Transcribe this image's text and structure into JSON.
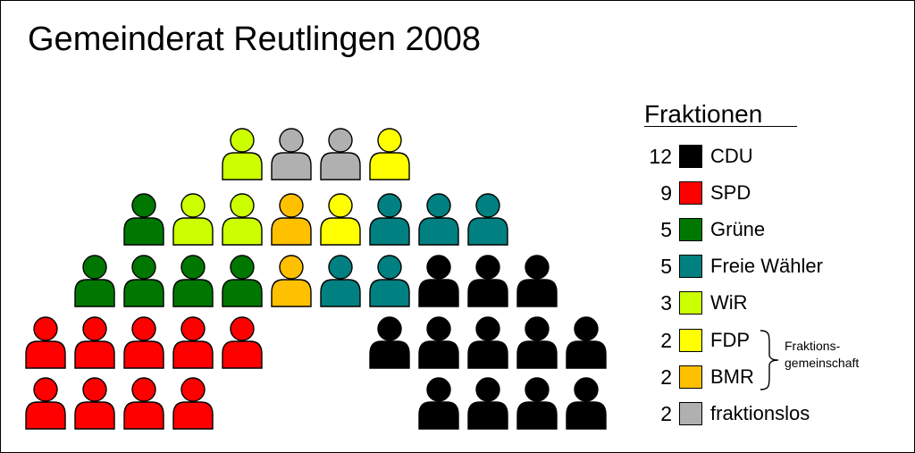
{
  "title": "Gemeinderat Reutlingen 2008",
  "legend": {
    "title": "Fraktionen",
    "items": [
      {
        "key": "cdu",
        "count": "12",
        "label": "CDU",
        "color": "#000000"
      },
      {
        "key": "spd",
        "count": "9",
        "label": "SPD",
        "color": "#ff0000"
      },
      {
        "key": "gruene",
        "count": "5",
        "label": "Grüne",
        "color": "#007700"
      },
      {
        "key": "fw",
        "count": "5",
        "label": "Freie Wähler",
        "color": "#008080"
      },
      {
        "key": "wir",
        "count": "3",
        "label": "WiR",
        "color": "#ccff00"
      },
      {
        "key": "fdp",
        "count": "2",
        "label": "FDP",
        "color": "#ffff00"
      },
      {
        "key": "bmr",
        "count": "2",
        "label": "BMR",
        "color": "#ffc000"
      },
      {
        "key": "los",
        "count": "2",
        "label": "fraktionslos",
        "color": "#b0b0b0"
      }
    ],
    "group_note_line1": "Fraktions-",
    "group_note_line2": "gemeinschaft"
  },
  "seat_rows": [
    [
      "wir",
      "los",
      "los",
      "fdp"
    ],
    [
      "gruene",
      "wir",
      "wir",
      "bmr",
      "fdp",
      "fw",
      "fw",
      "fw"
    ],
    [
      "gruene",
      "gruene",
      "gruene",
      "gruene",
      "bmr",
      "fw",
      "fw",
      "cdu",
      "cdu",
      "cdu"
    ],
    [
      "spd",
      "spd",
      "spd",
      "spd",
      "spd",
      null,
      null,
      "cdu",
      "cdu",
      "cdu",
      "cdu",
      "cdu"
    ],
    [
      "spd",
      "spd",
      "spd",
      "spd",
      null,
      null,
      null,
      null,
      "cdu",
      "cdu",
      "cdu",
      "cdu"
    ]
  ]
}
